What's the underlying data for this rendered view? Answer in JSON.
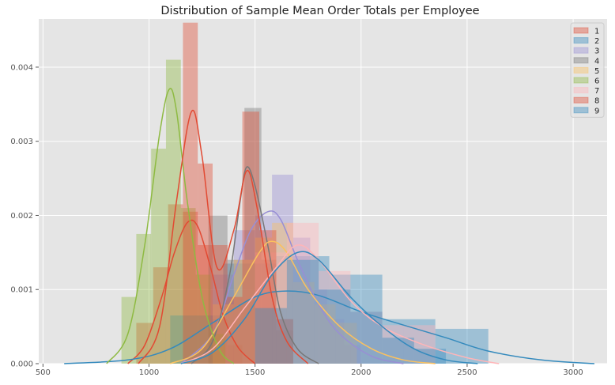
{
  "chart_data": {
    "type": "histogram",
    "title": "Distribution of Sample Mean Order Totals per Employee",
    "xlabel": "",
    "ylabel": "",
    "xlim": [
      480,
      3160
    ],
    "ylim": [
      0,
      0.00465
    ],
    "x_ticks": [
      500,
      1000,
      1500,
      2000,
      2500,
      3000
    ],
    "x_tick_labels": [
      "500",
      "1000",
      "1500",
      "2000",
      "2500",
      "3000"
    ],
    "y_ticks": [
      0,
      0.001,
      0.002,
      0.003,
      0.004
    ],
    "y_tick_labels": [
      "0.000",
      "0.001",
      "0.002",
      "0.003",
      "0.004"
    ],
    "grid": true,
    "legend_position": "top-right",
    "series": [
      {
        "name": "1",
        "color": "#E24A33",
        "bins": [
          [
            940,
            1020,
            0.00055
          ],
          [
            1020,
            1090,
            0.0013
          ],
          [
            1090,
            1160,
            0.00215
          ],
          [
            1160,
            1230,
            0.00205
          ],
          [
            1230,
            1300,
            0.0016
          ],
          [
            1300,
            1370,
            0.0006
          ],
          [
            1370,
            1440,
            0.00025
          ]
        ],
        "kde": [
          [
            900,
            0
          ],
          [
            980,
            0.00025
          ],
          [
            1060,
            0.0009
          ],
          [
            1120,
            0.0015
          ],
          [
            1180,
            0.0019
          ],
          [
            1230,
            0.00185
          ],
          [
            1290,
            0.0013
          ],
          [
            1350,
            0.00065
          ],
          [
            1420,
            0.00022
          ],
          [
            1500,
            0
          ]
        ]
      },
      {
        "name": "2",
        "color": "#348ABD",
        "bins": [
          [
            1100,
            1350,
            0.00065
          ],
          [
            1350,
            1600,
            0.00135
          ],
          [
            1600,
            1850,
            0.00145
          ],
          [
            1850,
            2100,
            0.0012
          ],
          [
            2100,
            2350,
            0.0006
          ],
          [
            2350,
            2600,
            0.00047
          ]
        ],
        "kde": [
          [
            600,
            0
          ],
          [
            900,
            5e-05
          ],
          [
            1100,
            0.0002
          ],
          [
            1300,
            0.00055
          ],
          [
            1500,
            0.0009
          ],
          [
            1650,
            0.00098
          ],
          [
            1800,
            0.00092
          ],
          [
            2000,
            0.0007
          ],
          [
            2200,
            0.00052
          ],
          [
            2400,
            0.00035
          ],
          [
            2600,
            0.00017
          ],
          [
            2850,
            5e-05
          ],
          [
            3100,
            0
          ]
        ]
      },
      {
        "name": "3",
        "color": "#988ED5",
        "bins": [
          [
            1300,
            1400,
            0.0012
          ],
          [
            1400,
            1500,
            0.0018
          ],
          [
            1500,
            1580,
            0.002
          ],
          [
            1580,
            1680,
            0.00255
          ],
          [
            1680,
            1760,
            0.0017
          ],
          [
            1760,
            1840,
            0.001
          ],
          [
            1840,
            1920,
            0.0006
          ],
          [
            1920,
            2000,
            0.00025
          ]
        ],
        "kde": [
          [
            1150,
            0
          ],
          [
            1300,
            0.0004
          ],
          [
            1400,
            0.0012
          ],
          [
            1480,
            0.0018
          ],
          [
            1560,
            0.00205
          ],
          [
            1620,
            0.00195
          ],
          [
            1700,
            0.0014
          ],
          [
            1800,
            0.0008
          ],
          [
            1900,
            0.0004
          ],
          [
            2050,
            0.0001
          ],
          [
            2200,
            0
          ]
        ]
      },
      {
        "name": "4",
        "color": "#777777",
        "bins": [
          [
            1280,
            1370,
            0.002
          ],
          [
            1370,
            1450,
            0.0014
          ],
          [
            1450,
            1530,
            0.00345
          ],
          [
            1530,
            1600,
            0.0014
          ],
          [
            1600,
            1680,
            0.00045
          ]
        ],
        "kde": [
          [
            1200,
            0
          ],
          [
            1300,
            0.0003
          ],
          [
            1380,
            0.0012
          ],
          [
            1430,
            0.0022
          ],
          [
            1460,
            0.00265
          ],
          [
            1500,
            0.0024
          ],
          [
            1560,
            0.0016
          ],
          [
            1620,
            0.0007
          ],
          [
            1700,
            0.0002
          ],
          [
            1800,
            0
          ]
        ]
      },
      {
        "name": "5",
        "color": "#FBC15E",
        "bins": [
          [
            1300,
            1400,
            0.0008
          ],
          [
            1400,
            1500,
            0.0014
          ],
          [
            1500,
            1580,
            0.0017
          ],
          [
            1580,
            1680,
            0.0019
          ],
          [
            1680,
            1780,
            0.0011
          ],
          [
            1780,
            1880,
            0.0008
          ],
          [
            1880,
            1980,
            0.00055
          ]
        ],
        "kde": [
          [
            1100,
            0
          ],
          [
            1250,
            0.0002
          ],
          [
            1400,
            0.0009
          ],
          [
            1520,
            0.0015
          ],
          [
            1580,
            0.00165
          ],
          [
            1650,
            0.0015
          ],
          [
            1750,
            0.001
          ],
          [
            1900,
            0.0005
          ],
          [
            2050,
            0.0002
          ],
          [
            2200,
            5e-05
          ],
          [
            2350,
            0
          ]
        ]
      },
      {
        "name": "6",
        "color": "#8EBA42",
        "bins": [
          [
            870,
            940,
            0.0009
          ],
          [
            940,
            1010,
            0.00175
          ],
          [
            1010,
            1080,
            0.0029
          ],
          [
            1080,
            1150,
            0.0041
          ],
          [
            1150,
            1220,
            0.0021
          ],
          [
            1220,
            1290,
            0.0012
          ],
          [
            1290,
            1360,
            0.0004
          ]
        ],
        "kde": [
          [
            800,
            0
          ],
          [
            900,
            0.0004
          ],
          [
            980,
            0.0016
          ],
          [
            1050,
            0.0031
          ],
          [
            1095,
            0.0037
          ],
          [
            1130,
            0.0034
          ],
          [
            1180,
            0.0022
          ],
          [
            1250,
            0.0009
          ],
          [
            1330,
            0.0002
          ],
          [
            1400,
            0
          ]
        ]
      },
      {
        "name": "7",
        "color": "#FFB5B8",
        "bins": [
          [
            1500,
            1650,
            0.0015
          ],
          [
            1650,
            1800,
            0.0019
          ],
          [
            1800,
            1950,
            0.00125
          ],
          [
            1950,
            2100,
            0.0007
          ],
          [
            2100,
            2200,
            0.00052
          ],
          [
            2200,
            2350,
            0.00052
          ]
        ],
        "kde": [
          [
            1150,
            0
          ],
          [
            1300,
            0.0002
          ],
          [
            1450,
            0.00075
          ],
          [
            1600,
            0.0013
          ],
          [
            1700,
            0.0016
          ],
          [
            1800,
            0.0014
          ],
          [
            1950,
            0.00085
          ],
          [
            2100,
            0.0005
          ],
          [
            2300,
            0.00025
          ],
          [
            2500,
            8e-05
          ],
          [
            2650,
            0
          ]
        ]
      },
      {
        "name": "8",
        "color": "#E24A33",
        "bins": [
          [
            1160,
            1230,
            0.0046
          ],
          [
            1230,
            1300,
            0.0027
          ],
          [
            1300,
            1370,
            0.0016
          ],
          [
            1370,
            1440,
            0.0009
          ],
          [
            1440,
            1520,
            0.0034
          ],
          [
            1520,
            1600,
            0.0018
          ],
          [
            1600,
            1680,
            0.0006
          ]
        ],
        "kde": [
          [
            950,
            0
          ],
          [
            1050,
            0.0005
          ],
          [
            1130,
            0.0022
          ],
          [
            1200,
            0.0034
          ],
          [
            1250,
            0.0028
          ],
          [
            1320,
            0.0013
          ],
          [
            1400,
            0.0018
          ],
          [
            1460,
            0.0026
          ],
          [
            1510,
            0.0021
          ],
          [
            1580,
            0.0009
          ],
          [
            1650,
            0.0003
          ],
          [
            1750,
            0
          ]
        ]
      },
      {
        "name": "9",
        "color": "#348ABD",
        "bins": [
          [
            1500,
            1650,
            0.00075
          ],
          [
            1650,
            1800,
            0.0014
          ],
          [
            1800,
            1950,
            0.001
          ],
          [
            1950,
            2100,
            0.0007
          ],
          [
            2100,
            2250,
            0.00035
          ],
          [
            2250,
            2400,
            0.0002
          ]
        ],
        "kde": [
          [
            1150,
            0
          ],
          [
            1300,
            0.00015
          ],
          [
            1450,
            0.0006
          ],
          [
            1580,
            0.0012
          ],
          [
            1700,
            0.0015
          ],
          [
            1800,
            0.0014
          ],
          [
            1950,
            0.0009
          ],
          [
            2100,
            0.0005
          ],
          [
            2250,
            0.0002
          ],
          [
            2400,
            5e-05
          ],
          [
            2550,
            0
          ]
        ]
      }
    ]
  }
}
